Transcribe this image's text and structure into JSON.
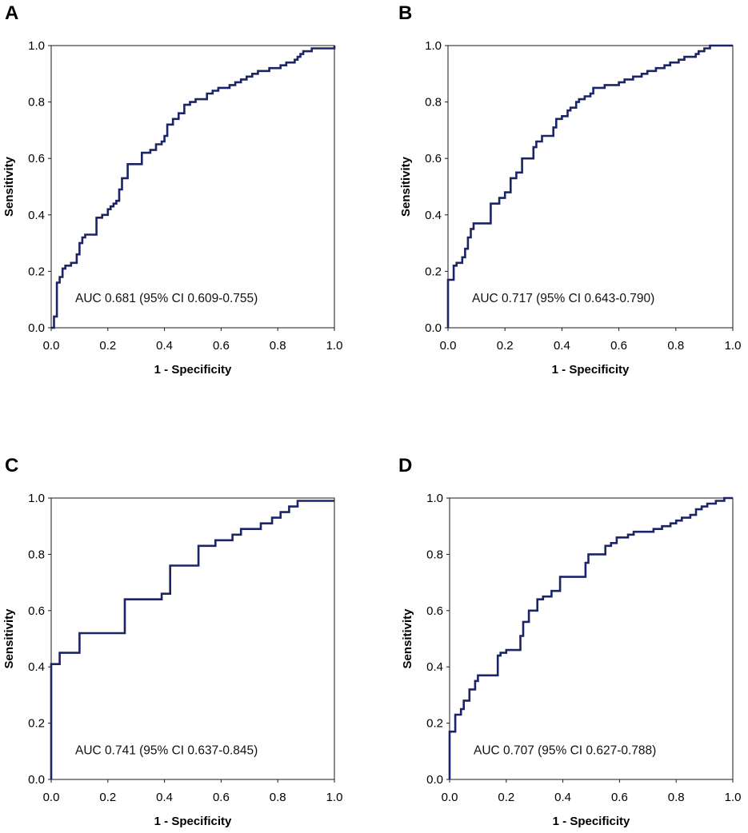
{
  "colors": {
    "line": "#1a2466",
    "frame": "#1a1a1a",
    "background": "#ffffff"
  },
  "chart_data": [
    {
      "type": "line",
      "panel": "A",
      "xlabel": "1 - Specificity",
      "ylabel": "Sensitivity",
      "xlim": [
        0,
        1
      ],
      "ylim": [
        0,
        1
      ],
      "xticks": [
        "0.0",
        "0.2",
        "0.4",
        "0.6",
        "0.8",
        "1.0"
      ],
      "yticks": [
        "0.0",
        "0.2",
        "0.4",
        "0.6",
        "0.8",
        "1.0"
      ],
      "annotation": "AUC 0.681 (95% CI 0.609-0.755)",
      "x": [
        0.0,
        0.01,
        0.02,
        0.03,
        0.04,
        0.05,
        0.07,
        0.09,
        0.1,
        0.11,
        0.12,
        0.14,
        0.16,
        0.18,
        0.2,
        0.21,
        0.22,
        0.23,
        0.24,
        0.25,
        0.27,
        0.28,
        0.32,
        0.33,
        0.35,
        0.37,
        0.39,
        0.4,
        0.41,
        0.43,
        0.45,
        0.47,
        0.49,
        0.51,
        0.53,
        0.55,
        0.57,
        0.59,
        0.61,
        0.63,
        0.65,
        0.67,
        0.69,
        0.71,
        0.73,
        0.75,
        0.77,
        0.79,
        0.81,
        0.83,
        0.85,
        0.86,
        0.87,
        0.88,
        0.89,
        0.9,
        0.92,
        0.95,
        0.97,
        1.0
      ],
      "y": [
        0.0,
        0.04,
        0.16,
        0.18,
        0.21,
        0.22,
        0.23,
        0.26,
        0.3,
        0.32,
        0.33,
        0.33,
        0.39,
        0.4,
        0.42,
        0.43,
        0.44,
        0.45,
        0.49,
        0.53,
        0.58,
        0.58,
        0.62,
        0.62,
        0.63,
        0.65,
        0.66,
        0.68,
        0.72,
        0.74,
        0.76,
        0.79,
        0.8,
        0.81,
        0.81,
        0.83,
        0.84,
        0.85,
        0.85,
        0.86,
        0.87,
        0.88,
        0.89,
        0.9,
        0.91,
        0.91,
        0.92,
        0.92,
        0.93,
        0.94,
        0.94,
        0.95,
        0.96,
        0.97,
        0.98,
        0.98,
        0.99,
        0.99,
        0.99,
        1.0
      ]
    },
    {
      "type": "line",
      "panel": "B",
      "xlabel": "1 - Specificity",
      "ylabel": "Sensitivity",
      "xlim": [
        0,
        1
      ],
      "ylim": [
        0,
        1
      ],
      "xticks": [
        "0.0",
        "0.2",
        "0.4",
        "0.6",
        "0.8",
        "1.0"
      ],
      "yticks": [
        "0.0",
        "0.2",
        "0.4",
        "0.6",
        "0.8",
        "1.0"
      ],
      "annotation": "AUC 0.717 (95% CI 0.643-0.790)",
      "x": [
        0.0,
        0.0,
        0.02,
        0.03,
        0.05,
        0.06,
        0.07,
        0.08,
        0.09,
        0.1,
        0.15,
        0.18,
        0.2,
        0.22,
        0.24,
        0.26,
        0.3,
        0.31,
        0.33,
        0.37,
        0.38,
        0.4,
        0.42,
        0.43,
        0.45,
        0.46,
        0.48,
        0.5,
        0.51,
        0.55,
        0.57,
        0.6,
        0.62,
        0.65,
        0.68,
        0.7,
        0.73,
        0.76,
        0.78,
        0.81,
        0.83,
        0.85,
        0.87,
        0.88,
        0.9,
        0.92,
        1.0
      ],
      "y": [
        0.0,
        0.17,
        0.22,
        0.23,
        0.25,
        0.28,
        0.32,
        0.35,
        0.37,
        0.37,
        0.44,
        0.46,
        0.48,
        0.53,
        0.55,
        0.6,
        0.64,
        0.66,
        0.68,
        0.71,
        0.74,
        0.75,
        0.77,
        0.78,
        0.8,
        0.81,
        0.82,
        0.83,
        0.85,
        0.86,
        0.86,
        0.87,
        0.88,
        0.89,
        0.9,
        0.91,
        0.92,
        0.93,
        0.94,
        0.95,
        0.96,
        0.96,
        0.97,
        0.98,
        0.99,
        1.0,
        1.0
      ]
    },
    {
      "type": "line",
      "panel": "C",
      "xlabel": "1 - Specificity",
      "ylabel": "Sensitivity",
      "xlim": [
        0,
        1
      ],
      "ylim": [
        0,
        1
      ],
      "xticks": [
        "0.0",
        "0.2",
        "0.4",
        "0.6",
        "0.8",
        "1.0"
      ],
      "yticks": [
        "0.0",
        "0.2",
        "0.4",
        "0.6",
        "0.8",
        "1.0"
      ],
      "annotation": "AUC 0.741 (95% CI 0.637-0.845)",
      "x": [
        0.0,
        0.0,
        0.03,
        0.1,
        0.26,
        0.39,
        0.42,
        0.52,
        0.58,
        0.64,
        0.67,
        0.74,
        0.78,
        0.81,
        0.84,
        0.87,
        1.0
      ],
      "y": [
        0.0,
        0.41,
        0.45,
        0.52,
        0.64,
        0.66,
        0.76,
        0.83,
        0.85,
        0.87,
        0.89,
        0.91,
        0.93,
        0.95,
        0.97,
        0.99,
        0.99
      ]
    },
    {
      "type": "line",
      "panel": "D",
      "xlabel": "1 - Specificity",
      "ylabel": "Sensitivity",
      "xlim": [
        0,
        1
      ],
      "ylim": [
        0,
        1
      ],
      "xticks": [
        "0.0",
        "0.2",
        "0.4",
        "0.6",
        "0.8",
        "1.0"
      ],
      "yticks": [
        "0.0",
        "0.2",
        "0.4",
        "0.6",
        "0.8",
        "1.0"
      ],
      "annotation": "AUC 0.707 (95% CI 0.627-0.788)",
      "x": [
        0.0,
        0.0,
        0.02,
        0.04,
        0.05,
        0.07,
        0.09,
        0.1,
        0.12,
        0.17,
        0.18,
        0.2,
        0.22,
        0.25,
        0.26,
        0.28,
        0.31,
        0.33,
        0.36,
        0.39,
        0.43,
        0.48,
        0.49,
        0.51,
        0.55,
        0.57,
        0.59,
        0.61,
        0.63,
        0.65,
        0.68,
        0.72,
        0.75,
        0.78,
        0.8,
        0.82,
        0.85,
        0.87,
        0.89,
        0.91,
        0.94,
        0.97,
        1.0
      ],
      "y": [
        0.0,
        0.17,
        0.23,
        0.25,
        0.28,
        0.32,
        0.35,
        0.37,
        0.37,
        0.44,
        0.45,
        0.46,
        0.46,
        0.51,
        0.56,
        0.6,
        0.64,
        0.65,
        0.67,
        0.72,
        0.72,
        0.77,
        0.8,
        0.8,
        0.83,
        0.84,
        0.86,
        0.86,
        0.87,
        0.88,
        0.88,
        0.89,
        0.9,
        0.91,
        0.92,
        0.93,
        0.94,
        0.96,
        0.97,
        0.98,
        0.99,
        1.0,
        1.0
      ]
    }
  ]
}
